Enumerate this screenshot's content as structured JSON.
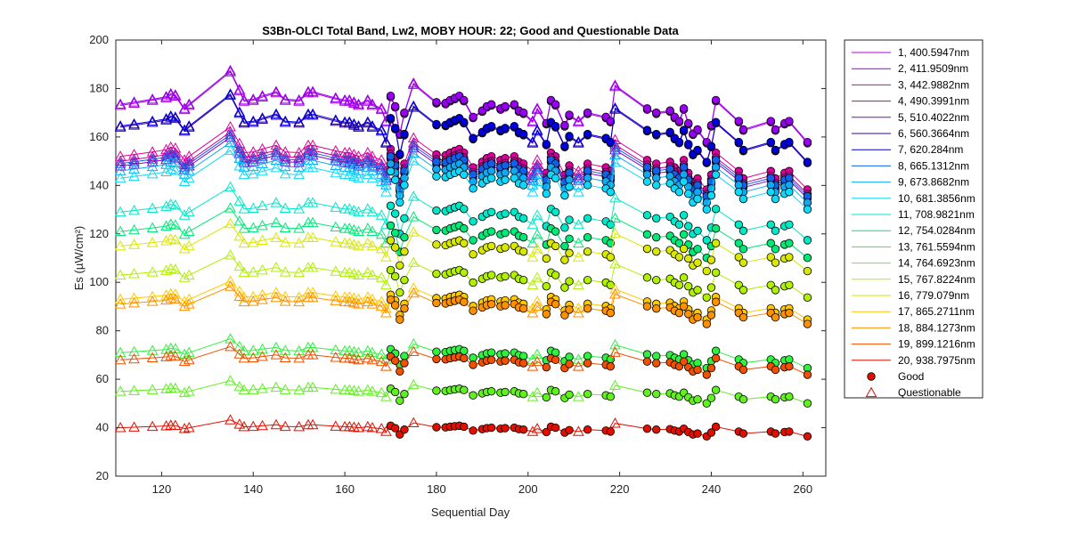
{
  "chart_data": {
    "type": "line",
    "title": "S3Bn-OLCI Total Band,  Lw2, MOBY HOUR: 22;  Good and Questionable Data",
    "xlabel": "Sequential Day",
    "ylabel": "Es (µW/cm²)",
    "xlim": [
      110,
      265
    ],
    "ylim": [
      20,
      200
    ],
    "xticks": [
      120,
      140,
      160,
      180,
      200,
      220,
      240,
      260
    ],
    "yticks": [
      20,
      40,
      60,
      80,
      100,
      120,
      140,
      160,
      180,
      200
    ],
    "grid": false,
    "legend_position": "outside-right",
    "days": [
      111,
      114,
      118,
      121,
      122,
      123,
      125,
      126,
      135,
      137,
      138,
      140,
      142,
      145,
      147,
      150,
      152,
      153,
      158,
      160,
      161,
      162,
      163,
      165,
      166,
      168,
      169,
      170,
      171,
      172,
      173,
      175,
      180,
      182,
      183,
      184,
      185,
      186,
      188,
      190,
      191,
      192,
      194,
      195,
      197,
      198,
      199,
      201,
      202,
      204,
      205,
      206,
      208,
      209,
      211,
      213,
      217,
      218,
      219,
      226,
      228,
      231,
      232,
      233,
      234,
      235,
      236,
      237,
      239,
      240,
      241,
      246,
      247,
      253,
      254,
      256,
      257,
      261
    ],
    "good_days": [
      170,
      171,
      172,
      173,
      180,
      182,
      183,
      184,
      185,
      186,
      188,
      190,
      191,
      192,
      194,
      195,
      197,
      198,
      199,
      204,
      205,
      206,
      208,
      209,
      213,
      217,
      218,
      226,
      228,
      231,
      232,
      233,
      234,
      235,
      236,
      237,
      239,
      240,
      241,
      246,
      247,
      253,
      254,
      256,
      257,
      261
    ],
    "base_profile": [
      1.0,
      1.005,
      1.012,
      1.018,
      1.025,
      1.022,
      0.99,
      1.0,
      1.08,
      1.035,
      1.01,
      1.012,
      1.02,
      1.03,
      1.012,
      1.01,
      1.03,
      1.03,
      1.015,
      1.01,
      1.01,
      1.005,
      1.0,
      1.01,
      1.0,
      0.99,
      0.96,
      1.02,
      0.995,
      0.93,
      0.98,
      1.05,
      1.005,
      1.003,
      1.01,
      1.015,
      1.02,
      1.01,
      0.97,
      0.985,
      0.995,
      1.0,
      0.99,
      0.995,
      1.0,
      0.985,
      0.98,
      0.96,
      0.99,
      0.955,
      1.01,
      1.0,
      0.95,
      0.975,
      0.96,
      0.98,
      0.97,
      0.96,
      1.045,
      0.99,
      0.98,
      0.985,
      0.97,
      0.96,
      0.99,
      0.955,
      0.93,
      0.94,
      0.91,
      0.95,
      1.01,
      0.96,
      0.94,
      0.96,
      0.94,
      0.955,
      0.96,
      0.91
    ],
    "series": [
      {
        "name": "1, 400.5947nm",
        "color": "#b000e0",
        "level": 173
      },
      {
        "name": "2, 411.9509nm",
        "color": "#9800f0",
        "level": 173.5
      },
      {
        "name": "3, 442.9882nm",
        "color": "#dc009c",
        "level": 152
      },
      {
        "name": "4, 490.3991nm",
        "color": "#c2009c",
        "level": 150
      },
      {
        "name": "5, 510.4022nm",
        "color": "#8800c8",
        "level": 148
      },
      {
        "name": "6, 560.3664nm",
        "color": "#3c00a0",
        "level": 164
      },
      {
        "name": "7,  620.284nm",
        "color": "#0000d8",
        "level": 164.5
      },
      {
        "name": "8, 665.1312nm",
        "color": "#1060e8",
        "level": 149
      },
      {
        "name": "9, 673.8682nm",
        "color": "#10a8f0",
        "level": 146
      },
      {
        "name": "10, 681.3856nm",
        "color": "#10d8f8",
        "level": 143
      },
      {
        "name": "11, 708.9821nm",
        "color": "#00e8c8",
        "level": 129
      },
      {
        "name": "12, 754.0284nm",
        "color": "#00e878",
        "level": 121
      },
      {
        "name": "13, 761.5594nm",
        "color": "#30f040",
        "level": 71
      },
      {
        "name": "14, 764.6923nm",
        "color": "#60f020",
        "level": 55
      },
      {
        "name": "15, 767.8224nm",
        "color": "#b0f000",
        "level": 103
      },
      {
        "name": "16,  779.079nm",
        "color": "#d8e800",
        "level": 115
      },
      {
        "name": "17, 865.2711nm",
        "color": "#ffc800",
        "level": 93
      },
      {
        "name": "18, 884.1273nm",
        "color": "#ff9000",
        "level": 91
      },
      {
        "name": "19, 899.1216nm",
        "color": "#f05000",
        "level": 68
      },
      {
        "name": "20, 938.7975nm",
        "color": "#e01000",
        "level": 40
      }
    ],
    "legend_extra": [
      {
        "label": "Good",
        "marker": "circle"
      },
      {
        "label": "Questionable",
        "marker": "triangle"
      }
    ]
  }
}
